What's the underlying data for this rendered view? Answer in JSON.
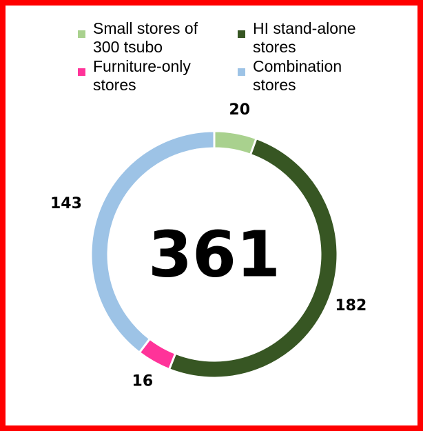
{
  "chart_data": {
    "type": "donut",
    "categories": [
      "Small stores of 300 tsubo",
      "HI stand-alone stores",
      "Furniture-only stores",
      "Combination stores"
    ],
    "values": [
      20,
      182,
      16,
      143
    ],
    "colors": [
      "#a9d18e",
      "#375623",
      "#ff3399",
      "#9dc3e6"
    ],
    "center_label": "361",
    "legend": "top"
  }
}
